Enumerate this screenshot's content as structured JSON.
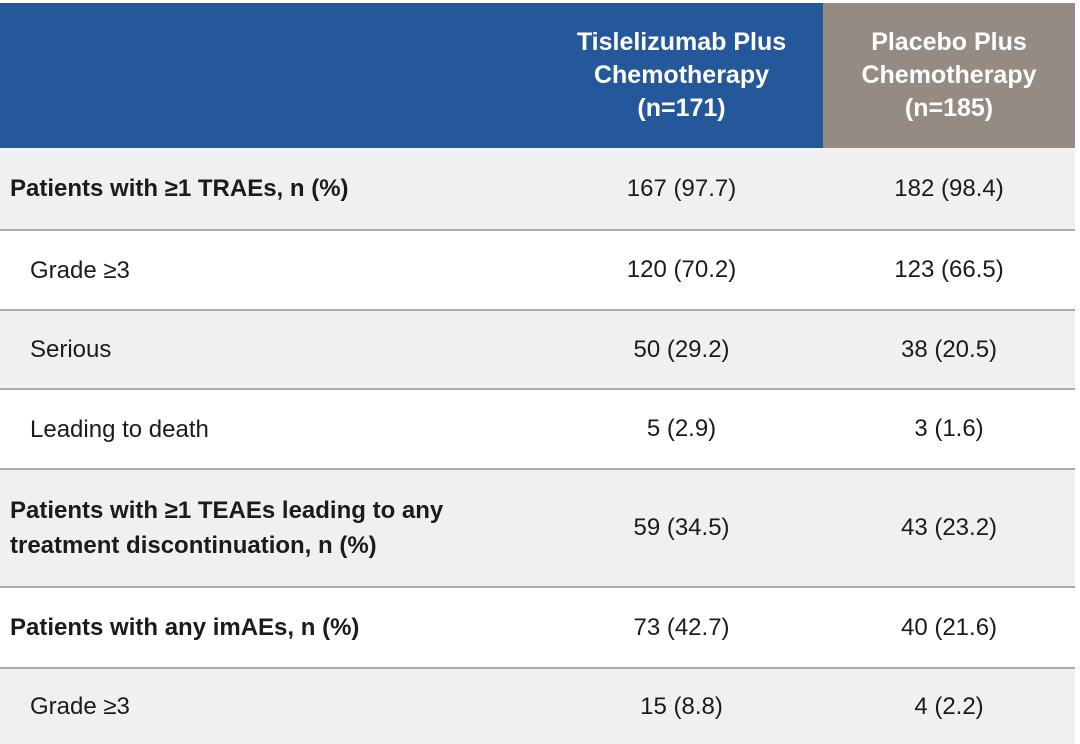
{
  "header": {
    "treatment": {
      "line1": "Tislelizumab Plus",
      "line2": "Chemotherapy",
      "line3": "(n=171)"
    },
    "placebo": {
      "line1": "Placebo Plus",
      "line2": "Chemotherapy",
      "line3": "(n=185)"
    }
  },
  "rows": [
    {
      "label": "Patients with ≥1 TRAEs, n (%)",
      "tislelizumab": "167 (97.7)",
      "placebo": "182 (98.4)"
    },
    {
      "label": "Grade ≥3",
      "tislelizumab": "120 (70.2)",
      "placebo": "123 (66.5)"
    },
    {
      "label": "Serious",
      "tislelizumab": "50 (29.2)",
      "placebo": "38 (20.5)"
    },
    {
      "label": "Leading to death",
      "tislelizumab": "5 (2.9)",
      "placebo": "3 (1.6)"
    },
    {
      "label": "Patients with ≥1 TEAEs leading to any treatment discontinuation, n (%)",
      "tislelizumab": "59 (34.5)",
      "placebo": "43 (23.2)"
    },
    {
      "label": "Patients with any imAEs, n (%)",
      "tislelizumab": "73 (42.7)",
      "placebo": "40 (21.6)"
    },
    {
      "label": "Grade ≥3",
      "tislelizumab": "15 (8.8)",
      "placebo": "4 (2.2)"
    }
  ],
  "colors": {
    "treatment_header_bg": "#25579B",
    "placebo_header_bg": "#958B83",
    "row_alt_bg": "#F0F0F0",
    "divider": "#ABABAB",
    "header_text": "#FFFFFF",
    "body_text": "#1B1B1B"
  }
}
